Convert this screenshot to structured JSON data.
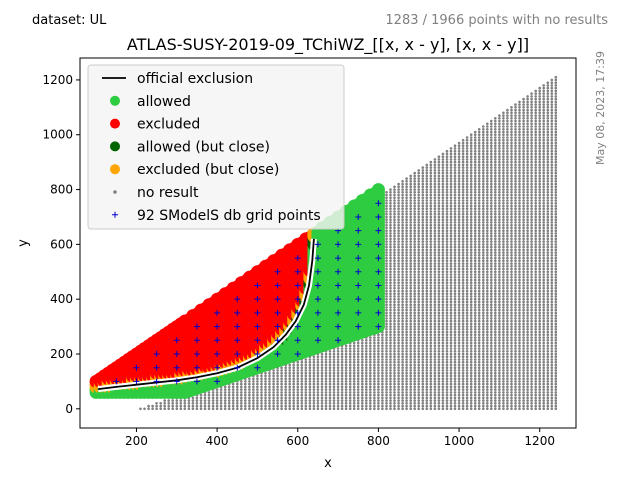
{
  "header": {
    "dataset_label": "dataset: UL",
    "points_summary": "1283 / 1966 points with no results",
    "timestamp": "May 08, 2023, 17:39"
  },
  "chart_data": {
    "type": "scatter",
    "title": "ATLAS-SUSY-2019-09_TChiWZ_[[x, x - y], [x, x - y]]",
    "xlabel": "x",
    "ylabel": "y",
    "xlim": [
      60,
      1290
    ],
    "ylim": [
      -70,
      1280
    ],
    "xticks": [
      "200",
      "400",
      "600",
      "800",
      "1000",
      "1200"
    ],
    "xtick_values": [
      200,
      400,
      600,
      800,
      1000,
      1200
    ],
    "yticks": [
      "0",
      "200",
      "400",
      "600",
      "800",
      "1000",
      "1200"
    ],
    "ytick_values": [
      0,
      200,
      400,
      600,
      800,
      1000,
      1200
    ],
    "grid": false,
    "legend_position": "top-left",
    "legend": [
      {
        "label": "official exclusion",
        "kind": "line",
        "color": "#000000"
      },
      {
        "label": "allowed",
        "kind": "dot",
        "color": "#2ecc40"
      },
      {
        "label": "excluded",
        "kind": "dot",
        "color": "#ff0000"
      },
      {
        "label": "allowed (but close)",
        "kind": "dot",
        "color": "#006400"
      },
      {
        "label": "excluded (but close)",
        "kind": "dot",
        "color": "#ffa500"
      },
      {
        "label": "no result",
        "kind": "small-dot",
        "color": "#808080"
      },
      {
        "label": "92 SModelS db grid points",
        "kind": "plus",
        "color": "#0000cc"
      }
    ],
    "colors": {
      "allowed": "#2ecc40",
      "excluded": "#ff0000",
      "allowed_close": "#006400",
      "excluded_close": "#ffa500",
      "no_result": "#808080",
      "grid_points": "#0000cc"
    },
    "regions": {
      "x_range_results": [
        100,
        800
      ],
      "x_range_no_result": [
        100,
        1240
      ],
      "y_minus_x_offset_min": -30,
      "y_band_top_offset": 30
    },
    "exclusion_curve": {
      "x": [
        105,
        150,
        200,
        250,
        300,
        350,
        400,
        450,
        500,
        540,
        570,
        595,
        615,
        628,
        636,
        640
      ],
      "y": [
        72,
        80,
        88,
        96,
        104,
        115,
        130,
        150,
        185,
        225,
        270,
        320,
        380,
        450,
        540,
        620
      ]
    },
    "grid_points": {
      "x": [
        100,
        150,
        200,
        250,
        300,
        350,
        400,
        450,
        500,
        550,
        600,
        650,
        700,
        750,
        800
      ],
      "y_step": 50
    }
  }
}
